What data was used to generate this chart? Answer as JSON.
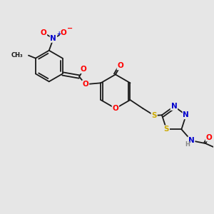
{
  "background_color": "#e6e6e6",
  "bond_color": "#1a1a1a",
  "atom_colors": {
    "O": "#ff0000",
    "N": "#0000cd",
    "S": "#ccaa00",
    "H": "#888888",
    "C": "#1a1a1a"
  },
  "figsize": [
    3.0,
    3.0
  ],
  "dpi": 100
}
